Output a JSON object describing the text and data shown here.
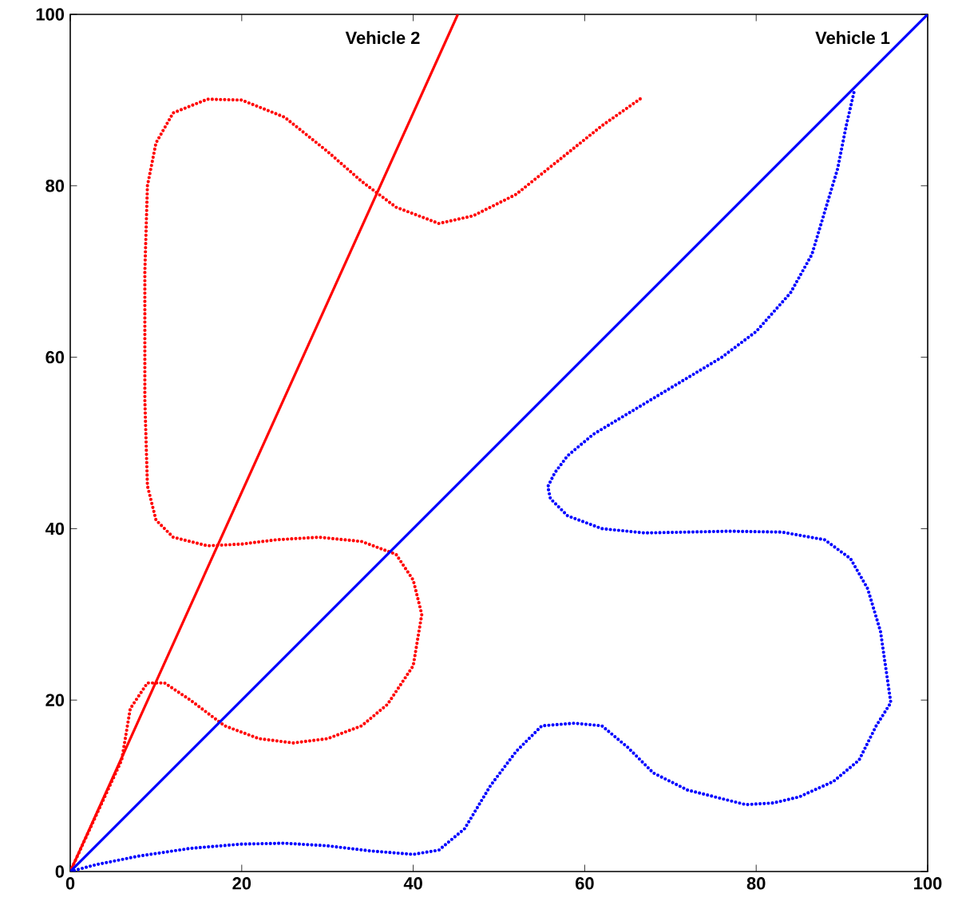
{
  "chart_data": {
    "type": "line",
    "xlim": [
      0,
      100
    ],
    "ylim": [
      0,
      100
    ],
    "xticks": [
      0,
      20,
      40,
      60,
      80,
      100
    ],
    "yticks": [
      0,
      20,
      40,
      60,
      80,
      100
    ],
    "grid": false,
    "series": [
      {
        "color": "#ff0000",
        "line_style": "dotted",
        "x": [
          0,
          3,
          6,
          7,
          9,
          11,
          14,
          18,
          22,
          26,
          30,
          34,
          37,
          40,
          41,
          40,
          38,
          34,
          29,
          24,
          20,
          16,
          12,
          10,
          9,
          8.7,
          8.7,
          9,
          10,
          12,
          16,
          20,
          25,
          30,
          34,
          38,
          43,
          47,
          52,
          57,
          62,
          66.7
        ],
        "values": [
          0,
          6.5,
          13,
          19,
          22,
          22,
          20,
          17,
          15.5,
          15,
          15.5,
          17,
          19.5,
          24,
          30,
          34,
          37,
          38.5,
          39,
          38.7,
          38.2,
          38,
          39,
          41,
          45,
          55,
          70,
          80,
          85,
          88.5,
          90.1,
          90,
          88,
          84,
          80.5,
          77.5,
          75.6,
          76.5,
          79,
          83,
          87,
          90.3
        ]
      },
      {
        "name": "Vehicle 2",
        "color": "#ff0000",
        "line_style": "solid",
        "x": [
          0,
          45.2
        ],
        "values": [
          0,
          100
        ]
      },
      {
        "color": "#0000ff",
        "line_style": "dotted",
        "x": [
          0,
          3,
          8,
          14,
          20,
          25,
          30,
          35,
          40,
          43,
          46,
          49,
          52,
          55,
          58.8,
          62,
          65,
          68,
          72,
          76,
          78.8,
          82,
          85,
          89,
          92,
          94,
          95.7,
          94.5,
          93,
          91,
          88,
          83,
          76.9,
          72,
          67,
          62,
          58,
          56,
          55.7,
          56.5,
          58,
          61,
          66,
          71,
          76,
          80,
          84,
          86.5,
          88,
          89.5,
          90.5,
          91.4
        ],
        "values": [
          0,
          0.8,
          1.8,
          2.7,
          3.2,
          3.3,
          3,
          2.4,
          2,
          2.5,
          5,
          10,
          14,
          17,
          17.3,
          17,
          14.5,
          11.5,
          9.5,
          8.5,
          7.8,
          8,
          8.7,
          10.5,
          13,
          17,
          19.7,
          28,
          33,
          36.5,
          38.7,
          39.6,
          39.7,
          39.6,
          39.5,
          40,
          41.5,
          43.5,
          44.9,
          46.5,
          48.5,
          51,
          54,
          57,
          60,
          63,
          67.5,
          72,
          77,
          82,
          87,
          90.9
        ]
      },
      {
        "name": "Vehicle 1",
        "color": "#0000ff",
        "line_style": "solid",
        "x": [
          0,
          100
        ],
        "values": [
          0,
          100
        ]
      }
    ]
  }
}
